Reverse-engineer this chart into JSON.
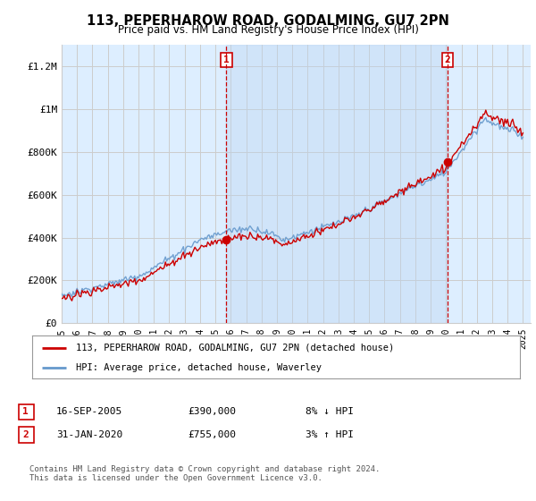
{
  "title": "113, PEPERHAROW ROAD, GODALMING, GU7 2PN",
  "subtitle": "Price paid vs. HM Land Registry's House Price Index (HPI)",
  "hpi_label": "HPI: Average price, detached house, Waverley",
  "property_label": "113, PEPERHAROW ROAD, GODALMING, GU7 2PN (detached house)",
  "footer": "Contains HM Land Registry data © Crown copyright and database right 2024.\nThis data is licensed under the Open Government Licence v3.0.",
  "sale1": {
    "label": "1",
    "date": "16-SEP-2005",
    "price": "£390,000",
    "hpi_rel": "8% ↓ HPI"
  },
  "sale2": {
    "label": "2",
    "date": "31-JAN-2020",
    "price": "£755,000",
    "hpi_rel": "3% ↑ HPI"
  },
  "sale1_x": 2005.71,
  "sale1_y": 390000,
  "sale2_x": 2020.08,
  "sale2_y": 755000,
  "ylim": [
    0,
    1300000
  ],
  "xlim": [
    1995.0,
    2025.5
  ],
  "yticks": [
    0,
    200000,
    400000,
    600000,
    800000,
    1000000,
    1200000
  ],
  "ytick_labels": [
    "£0",
    "£200K",
    "£400K",
    "£600K",
    "£800K",
    "£1M",
    "£1.2M"
  ],
  "hpi_color": "#6699cc",
  "property_color": "#cc0000",
  "vline_color": "#cc0000",
  "grid_color": "#cccccc",
  "bg_color": "#ddeeff",
  "highlight_color": "#cce0f0"
}
